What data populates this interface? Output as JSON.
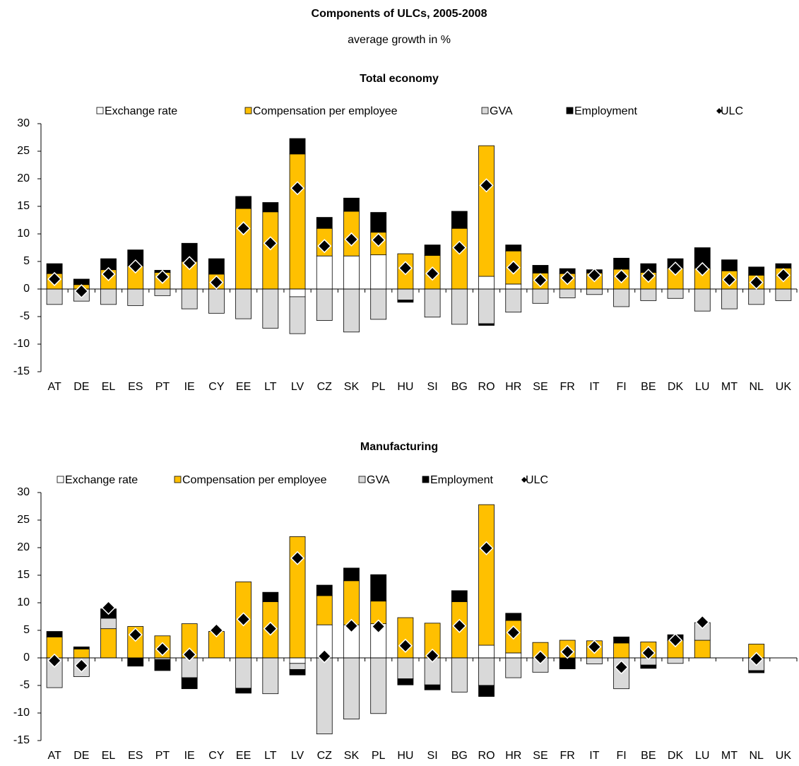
{
  "title": "Components of ULCs, 2005-2008",
  "subtitle": "average growth in %",
  "chart_data": [
    {
      "type": "bar",
      "title": "Total economy",
      "categories": [
        "AT",
        "DE",
        "EL",
        "ES",
        "PT",
        "IE",
        "CY",
        "EE",
        "LT",
        "LV",
        "CZ",
        "SK",
        "PL",
        "HU",
        "SI",
        "BG",
        "RO",
        "HR",
        "SE",
        "FR",
        "IT",
        "FI",
        "BE",
        "DK",
        "LU",
        "MT",
        "NL",
        "UK"
      ],
      "ylim": [
        -15,
        30
      ],
      "yticks": [
        -15,
        -10,
        -5,
        0,
        5,
        10,
        15,
        20,
        25,
        30
      ],
      "series": [
        {
          "name": "Exchange rate",
          "color": "#ffffff",
          "values": [
            0,
            0,
            0,
            0,
            0,
            0,
            0,
            0,
            0,
            -1.4,
            6.0,
            6.0,
            6.2,
            0,
            0,
            0,
            2.3,
            0.9,
            0,
            0,
            0,
            0,
            0,
            0,
            0,
            0,
            0,
            0
          ]
        },
        {
          "name": "Compensation per employee",
          "color": "#ffc000",
          "values": [
            2.8,
            0.8,
            3.5,
            4.2,
            3.0,
            5.0,
            2.7,
            14.6,
            14.0,
            24.5,
            5.0,
            8.1,
            4.1,
            6.4,
            6.1,
            11.0,
            23.7,
            6.0,
            2.9,
            2.8,
            2.9,
            3.6,
            3.0,
            3.8,
            3.8,
            3.3,
            2.5,
            3.8
          ]
        },
        {
          "name": "GVA",
          "color": "#d9d9d9",
          "values": [
            -2.8,
            -2.2,
            -2.8,
            -3.0,
            -1.2,
            -3.6,
            -4.4,
            -5.4,
            -7.1,
            -6.7,
            -5.7,
            -7.8,
            -5.5,
            -2.0,
            -5.1,
            -6.4,
            -6.3,
            -4.2,
            -2.6,
            -1.6,
            -1.0,
            -3.2,
            -2.1,
            -1.7,
            -4.0,
            -3.6,
            -2.8,
            -2.1
          ]
        },
        {
          "name": "Employment",
          "color": "#000000",
          "values": [
            1.8,
            1.0,
            2.0,
            2.9,
            0.4,
            3.3,
            2.8,
            2.2,
            1.7,
            2.8,
            2.0,
            2.4,
            3.6,
            -0.4,
            1.9,
            3.1,
            -0.3,
            1.1,
            1.4,
            0.9,
            0.6,
            2.0,
            1.6,
            1.7,
            3.7,
            2.0,
            1.5,
            0.8
          ]
        },
        {
          "name": "ULC",
          "color": "#000000",
          "style": "diamond",
          "values": [
            1.8,
            -0.4,
            2.7,
            4.1,
            2.2,
            4.7,
            1.2,
            11.0,
            8.3,
            18.3,
            7.8,
            9.0,
            8.9,
            3.8,
            2.8,
            7.5,
            18.8,
            3.9,
            1.6,
            2.0,
            2.5,
            2.3,
            2.4,
            3.7,
            3.6,
            1.7,
            1.2,
            2.5
          ]
        }
      ]
    },
    {
      "type": "bar",
      "title": "Manufacturing",
      "categories": [
        "AT",
        "DE",
        "EL",
        "ES",
        "PT",
        "IE",
        "CY",
        "EE",
        "LT",
        "LV",
        "CZ",
        "SK",
        "PL",
        "HU",
        "SI",
        "BG",
        "RO",
        "HR",
        "SE",
        "FR",
        "IT",
        "FI",
        "BE",
        "DK",
        "LU",
        "MT",
        "NL",
        "UK"
      ],
      "ylim": [
        -15,
        30
      ],
      "yticks": [
        -15,
        -10,
        -5,
        0,
        5,
        10,
        15,
        20,
        25,
        30
      ],
      "series": [
        {
          "name": "Exchange rate",
          "color": "#ffffff",
          "values": [
            0,
            0,
            0,
            0,
            0,
            0,
            0,
            0,
            0,
            -1.0,
            6.0,
            6.0,
            6.2,
            0,
            0,
            0,
            2.3,
            0.9,
            0,
            0,
            0,
            0,
            0,
            0,
            0,
            null,
            0,
            null
          ]
        },
        {
          "name": "Compensation per employee",
          "color": "#ffc000",
          "values": [
            3.8,
            1.6,
            5.3,
            5.7,
            4.0,
            6.2,
            4.8,
            13.8,
            10.2,
            22.0,
            5.3,
            8.0,
            4.1,
            7.3,
            6.3,
            10.2,
            25.5,
            5.9,
            2.8,
            3.2,
            3.1,
            2.7,
            2.9,
            3.2,
            3.2,
            null,
            2.5,
            null
          ]
        },
        {
          "name": "GVA",
          "color": "#d9d9d9",
          "values": [
            -5.4,
            -3.4,
            1.9,
            0,
            -0.3,
            -3.6,
            0,
            -5.5,
            -6.5,
            -1.1,
            -13.8,
            -11.1,
            -10.1,
            -3.8,
            -4.9,
            -6.2,
            -5.0,
            -3.6,
            -2.6,
            0,
            -1.1,
            -5.6,
            -1.3,
            -1.0,
            3.2,
            null,
            -2.3,
            null
          ]
        },
        {
          "name": "Employment",
          "color": "#000000",
          "values": [
            1.0,
            0.4,
            1.7,
            -1.5,
            -2.0,
            -2.0,
            0,
            -0.9,
            1.7,
            -1.0,
            1.9,
            2.3,
            4.8,
            -1.1,
            -0.9,
            2.0,
            -2.0,
            1.3,
            0,
            -2.0,
            0,
            1.1,
            -0.6,
            1.0,
            0,
            null,
            -0.4,
            null
          ]
        },
        {
          "name": "ULC",
          "color": "#000000",
          "style": "diamond",
          "values": [
            -0.5,
            -1.4,
            9.1,
            4.2,
            1.6,
            0.6,
            5.0,
            7.0,
            5.3,
            18.1,
            0.3,
            5.8,
            5.7,
            2.2,
            0.4,
            5.8,
            19.9,
            4.6,
            0.1,
            1.1,
            2.0,
            -1.7,
            0.9,
            3.2,
            6.5,
            null,
            -0.2,
            null
          ]
        }
      ]
    }
  ]
}
